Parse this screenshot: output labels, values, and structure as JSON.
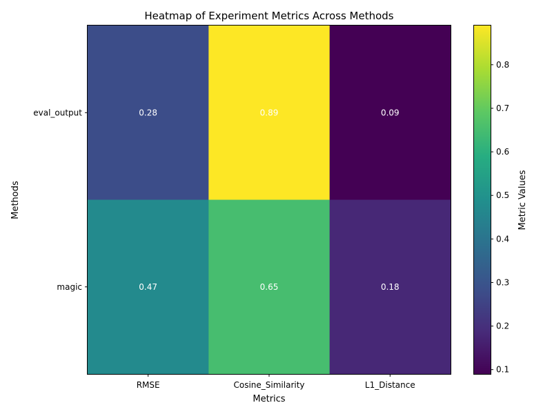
{
  "chart_data": {
    "type": "heatmap",
    "title": "Heatmap of Experiment Metrics Across Methods",
    "xlabel": "Metrics",
    "ylabel": "Methods",
    "x_categories": [
      "RMSE",
      "Cosine_Similarity",
      "L1_Distance"
    ],
    "y_categories": [
      "eval_output",
      "magic"
    ],
    "values": [
      [
        0.28,
        0.89,
        0.09
      ],
      [
        0.47,
        0.65,
        0.18
      ]
    ],
    "cell_labels": [
      [
        "0.28",
        "0.89",
        "0.09"
      ],
      [
        "0.47",
        "0.65",
        "0.18"
      ]
    ],
    "colormap": "viridis",
    "color_range": [
      0.09,
      0.89
    ],
    "colorbar": {
      "label": "Metric Values",
      "ticks": [
        0.1,
        0.2,
        0.3,
        0.4,
        0.5,
        0.6,
        0.7,
        0.8
      ],
      "tick_labels": [
        "0.1",
        "0.2",
        "0.3",
        "0.4",
        "0.5",
        "0.6",
        "0.7",
        "0.8"
      ]
    },
    "grid": false,
    "annotation_color": "#ffffff"
  }
}
